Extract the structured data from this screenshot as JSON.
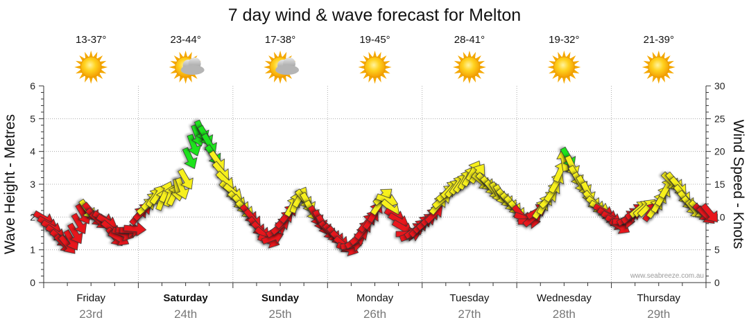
{
  "chart_data": {
    "type": "line",
    "title": "7 day wind & wave forecast for Melton",
    "ylabel_left": "Wave Height - Metres",
    "ylabel_right": "Wind Speed - Knots",
    "ylim_left": [
      0,
      6
    ],
    "yticks_left": [
      "0",
      "1",
      "2",
      "3",
      "4",
      "5",
      "6"
    ],
    "ylim_right": [
      0,
      30
    ],
    "yticks_right": [
      "0",
      "5",
      "10",
      "15",
      "20",
      "25",
      "30"
    ],
    "watermark": "www.seabreeze.com.au",
    "days": [
      {
        "name": "Friday",
        "date": "23rd",
        "temp": "13-37°",
        "icon": "sun-icon",
        "bold": false
      },
      {
        "name": "Saturday",
        "date": "24th",
        "temp": "23-44°",
        "icon": "sun-cloud-icon",
        "bold": true
      },
      {
        "name": "Sunday",
        "date": "25th",
        "temp": "17-38°",
        "icon": "sun-cloud-icon",
        "bold": true
      },
      {
        "name": "Monday",
        "date": "26th",
        "temp": "19-45°",
        "icon": "sun-icon",
        "bold": false
      },
      {
        "name": "Tuesday",
        "date": "27th",
        "temp": "28-41°",
        "icon": "sun-icon",
        "bold": false
      },
      {
        "name": "Wednesday",
        "date": "28th",
        "temp": "19-32°",
        "icon": "sun-icon",
        "bold": false
      },
      {
        "name": "Thursday",
        "date": "29th",
        "temp": "21-39°",
        "icon": "sun-icon",
        "bold": false
      }
    ],
    "wind_colors": {
      "light": "#e8141b",
      "moderate": "#f7f01e",
      "strong": "#1ee31e"
    },
    "wind_thresholds_knots": [
      11,
      19
    ],
    "wind_series": {
      "name": "Wind speed (knots) with direction (degrees, meteorological) at hourly steps from Friday 00:00",
      "start_hour": 0,
      "step_hours": 1,
      "speed": [
        9.8,
        9,
        8.4,
        7.6,
        6.8,
        6,
        5.8,
        6.5,
        7.5,
        9,
        10.5,
        11.2,
        10.8,
        10,
        9.5,
        9.8,
        9.3,
        8.2,
        7,
        6.8,
        7.5,
        7.9,
        8,
        8.2,
        10.2,
        10.8,
        11.6,
        12.4,
        13,
        13.4,
        12.6,
        13.8,
        13.2,
        13.3,
        14.2,
        14.4,
        15.8,
        19,
        21,
        22.5,
        23.2,
        22.4,
        21.2,
        19.5,
        18.6,
        17,
        15.6,
        14.2,
        13.8,
        12.6,
        12,
        11.2,
        10.5,
        9.8,
        8.6,
        8,
        7.2,
        6.4,
        6.8,
        8,
        8.6,
        9.6,
        10.5,
        11.6,
        12.2,
        13,
        12.8,
        12.2,
        11,
        10.2,
        9.5,
        8.8,
        8,
        7.6,
        7.2,
        6.6,
        5.8,
        5.2,
        5.7,
        6.3,
        7,
        8,
        9.1,
        9.6,
        10.7,
        11.8,
        13.1,
        12.6,
        11.4,
        10.2,
        9.5,
        8.4,
        7.4,
        7.2,
        7.9,
        8.3,
        8.9,
        9.3,
        10,
        10.4,
        11.8,
        12.6,
        13.6,
        14.2,
        14.4,
        14.9,
        15.2,
        15.7,
        16.2,
        17,
        16.6,
        15.5,
        15.4,
        14.8,
        14.2,
        13.8,
        13.4,
        12.9,
        12.3,
        11.8,
        11.1,
        10.4,
        9.8,
        9.3,
        9.8,
        10.8,
        11.2,
        11.9,
        12.7,
        13.8,
        15.2,
        16.9,
        18.6,
        19.1,
        17.8,
        16.3,
        15.3,
        14.8,
        13.8,
        12.6,
        11.9,
        11.4,
        10.9,
        10.3,
        9.8,
        9.2,
        8.6,
        9.3,
        9.8,
        10.2,
        10.8,
        11.2,
        11.3,
        11.4,
        10.8,
        11.3,
        12.2,
        13.2,
        14.4,
        15.5,
        15.4,
        14.7,
        13.5,
        12.6,
        11.8,
        11.2,
        11.2,
        10.7,
        10.3,
        10.6
      ],
      "direction_deg": [
        300,
        300,
        300,
        305,
        310,
        315,
        320,
        330,
        330,
        330,
        330,
        325,
        320,
        315,
        310,
        300,
        300,
        310,
        320,
        300,
        290,
        275,
        270,
        275,
        220,
        225,
        230,
        225,
        215,
        215,
        200,
        205,
        200,
        205,
        350,
        340,
        330,
        335,
        340,
        340,
        335,
        330,
        330,
        325,
        325,
        320,
        315,
        310,
        310,
        315,
        320,
        315,
        320,
        320,
        320,
        315,
        310,
        290,
        250,
        240,
        230,
        225,
        220,
        210,
        200,
        210,
        320,
        330,
        330,
        330,
        335,
        330,
        320,
        320,
        320,
        315,
        310,
        290,
        260,
        240,
        230,
        220,
        220,
        215,
        210,
        215,
        230,
        290,
        310,
        300,
        300,
        300,
        270,
        250,
        235,
        225,
        225,
        230,
        225,
        225,
        220,
        230,
        230,
        225,
        220,
        215,
        215,
        210,
        210,
        210,
        215,
        310,
        315,
        320,
        320,
        330,
        330,
        320,
        320,
        320,
        320,
        320,
        290,
        270,
        230,
        240,
        215,
        210,
        225,
        215,
        210,
        205,
        170,
        330,
        335,
        330,
        330,
        330,
        335,
        320,
        310,
        300,
        300,
        300,
        300,
        300,
        300,
        270,
        240,
        235,
        235,
        230,
        230,
        225,
        215,
        215,
        210,
        210,
        210,
        315,
        320,
        320,
        320,
        320,
        320,
        320,
        315,
        315,
        315,
        320
      ]
    }
  }
}
